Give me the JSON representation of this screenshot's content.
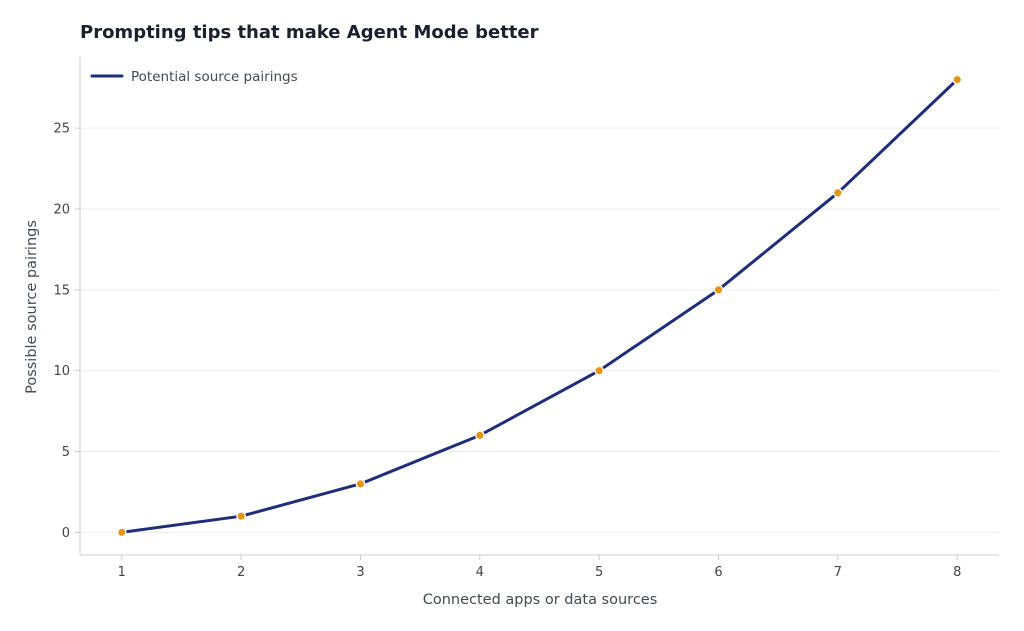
{
  "chart_data": {
    "type": "line",
    "title": "Prompting tips that make Agent Mode better",
    "xlabel": "Connected apps or data sources",
    "ylabel": "Possible source pairings",
    "x": [
      1,
      2,
      3,
      4,
      5,
      6,
      7,
      8
    ],
    "series": [
      {
        "name": "Potential source pairings",
        "values": [
          0,
          1,
          3,
          6,
          10,
          15,
          21,
          28
        ]
      }
    ],
    "xticks": [
      1,
      2,
      3,
      4,
      5,
      6,
      7,
      8
    ],
    "yticks": [
      0,
      5,
      10,
      15,
      20,
      25
    ],
    "xlim": [
      0.65,
      8.35
    ],
    "ylim": [
      -1.4,
      29.4
    ],
    "grid": true,
    "legend_position": "top-left",
    "colors": {
      "line": "#1f2d7a",
      "marker": "#e8950e",
      "grid": "#ececec",
      "axis": "#cccccc"
    }
  }
}
